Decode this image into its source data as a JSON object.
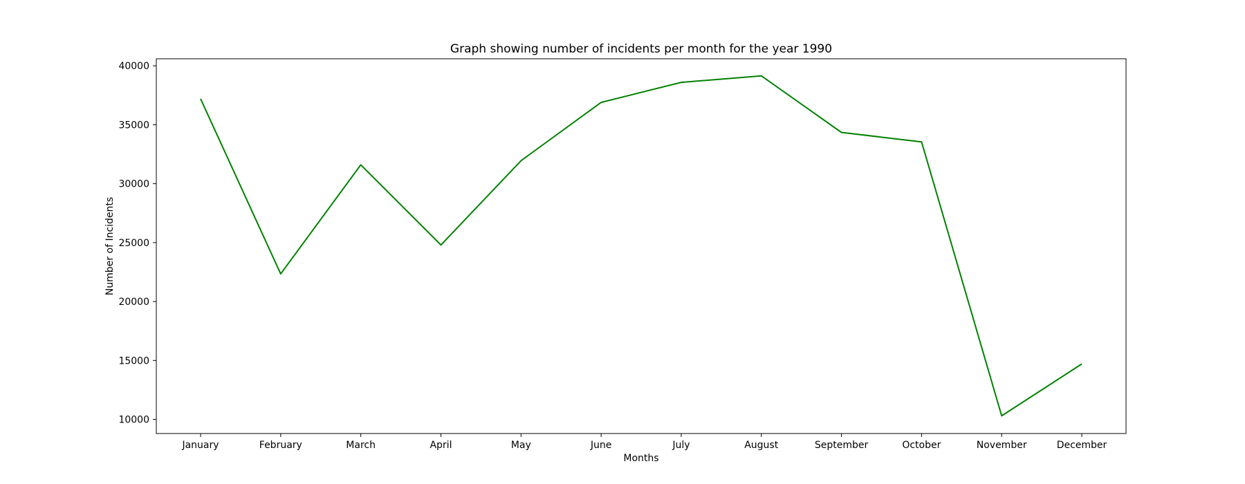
{
  "chart_data": {
    "type": "line",
    "title": "Graph showing number of incidents per month for the year 1990",
    "xlabel": "Months",
    "ylabel": "Number of Incidents",
    "categories": [
      "January",
      "February",
      "March",
      "April",
      "May",
      "June",
      "July",
      "August",
      "September",
      "October",
      "November",
      "December"
    ],
    "series": [
      {
        "values": [
          37200,
          22350,
          31600,
          24800,
          31950,
          36900,
          38600,
          39150,
          34350,
          33550,
          10300,
          14700
        ]
      }
    ],
    "ylim": [
      8800,
      40600
    ],
    "yticks": [
      10000,
      15000,
      20000,
      25000,
      30000,
      35000,
      40000
    ],
    "grid": false,
    "legend": "none",
    "colors": {
      "line": "#008000",
      "axes": "#000000",
      "background": "#ffffff"
    }
  }
}
